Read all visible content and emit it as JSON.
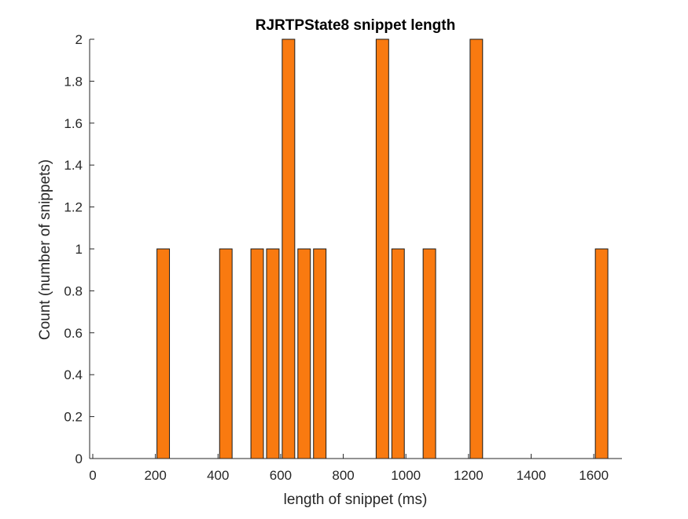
{
  "chart_data": {
    "type": "bar",
    "title": "RJRTPState8 snippet length",
    "xlabel": "length of snippet (ms)",
    "ylabel": "Count (number of snippets)",
    "xlim": [
      -10,
      1690
    ],
    "ylim": [
      0,
      2
    ],
    "xticks": [
      0,
      200,
      400,
      600,
      800,
      1000,
      1200,
      1400,
      1600
    ],
    "yticks": [
      0,
      0.2,
      0.4,
      0.6,
      0.8,
      1,
      1.2,
      1.4,
      1.6,
      1.8,
      2
    ],
    "bin_width": 50,
    "x": [
      0,
      50,
      100,
      150,
      200,
      250,
      300,
      350,
      400,
      450,
      500,
      550,
      600,
      650,
      700,
      750,
      800,
      850,
      900,
      950,
      1000,
      1050,
      1100,
      1150,
      1200,
      1250,
      1300,
      1350,
      1400,
      1450,
      1500,
      1550,
      1600
    ],
    "values": [
      0,
      0,
      0,
      0,
      1,
      0,
      0,
      0,
      1,
      0,
      1,
      1,
      2,
      1,
      1,
      0,
      0,
      0,
      2,
      1,
      0,
      1,
      0,
      0,
      2,
      0,
      0,
      0,
      0,
      0,
      0,
      0,
      1
    ],
    "bar_color": "#F97A10",
    "edge_color": "#1a1a1a",
    "grid": false,
    "legend": "none"
  }
}
